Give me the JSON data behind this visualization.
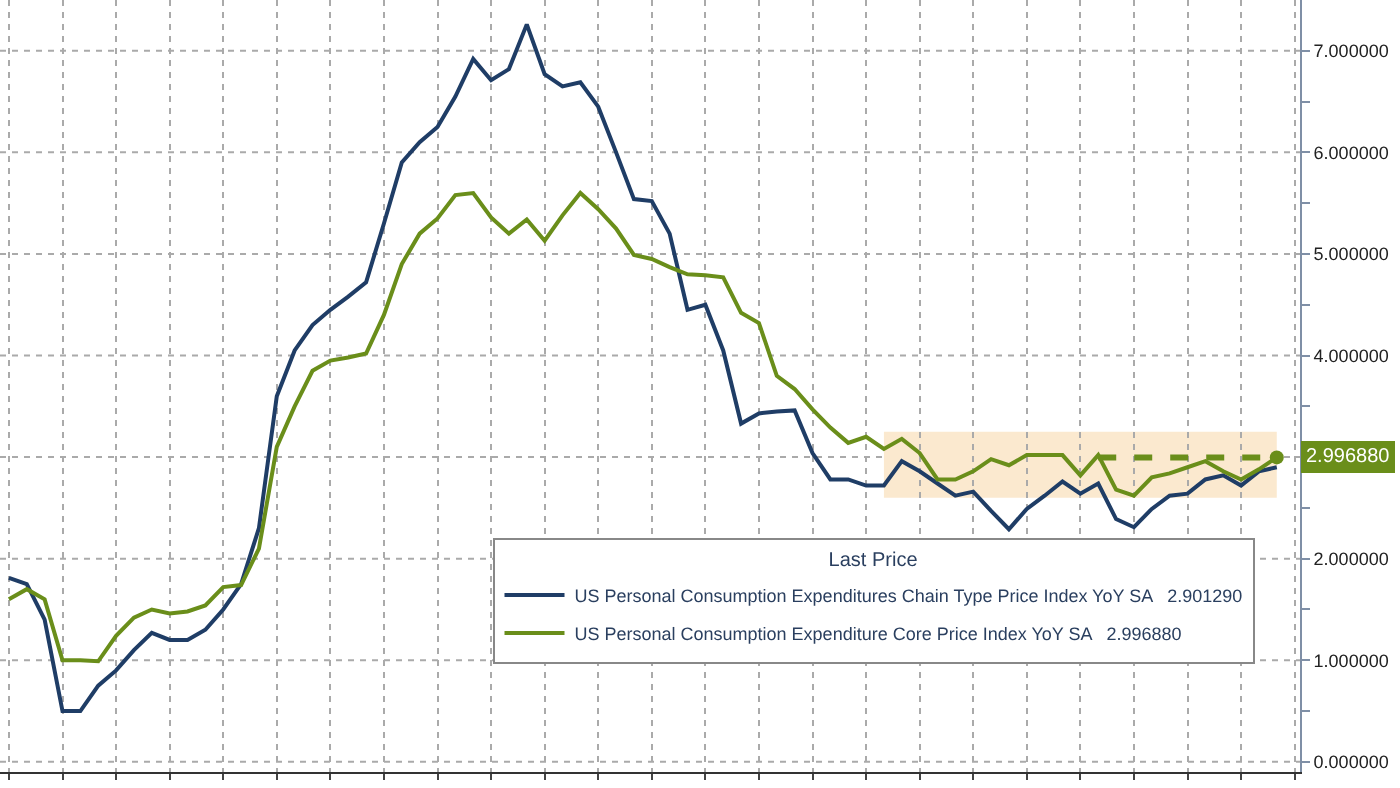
{
  "chart_data": {
    "type": "line",
    "categories": [
      null,
      null,
      null,
      null,
      null,
      null,
      null,
      null,
      null,
      null,
      null,
      null,
      null,
      null,
      null,
      null,
      null,
      null,
      null,
      null,
      null,
      null,
      null,
      null,
      null,
      null,
      null,
      null,
      null,
      null,
      null,
      null,
      null,
      null,
      null,
      null,
      null,
      null,
      null,
      null,
      null,
      null,
      null,
      null,
      null,
      null,
      null,
      null,
      null,
      null,
      null,
      null,
      null,
      null,
      null,
      null,
      null,
      null,
      null,
      null,
      null,
      null,
      null,
      null,
      null,
      null,
      null,
      null,
      null,
      null,
      null,
      null
    ],
    "series": [
      {
        "name": "US Personal Consumption Expenditures Chain Type Price Index YoY SA   2.901290",
        "color": "#1f3d66",
        "values": [
          1.81,
          1.75,
          1.4,
          0.5,
          0.5,
          0.75,
          0.9,
          1.1,
          1.27,
          1.2,
          1.2,
          1.3,
          1.5,
          1.75,
          2.3,
          3.6,
          4.05,
          4.3,
          4.45,
          4.58,
          4.72,
          5.3,
          5.9,
          6.1,
          6.25,
          6.55,
          6.92,
          6.71,
          6.82,
          7.26,
          6.77,
          6.65,
          6.69,
          6.45,
          6.0,
          5.54,
          5.52,
          5.2,
          4.45,
          4.5,
          4.05,
          3.33,
          3.43,
          3.45,
          3.46,
          3.04,
          2.78,
          2.78,
          2.72,
          2.72,
          2.96,
          2.86,
          2.74,
          2.62,
          2.66,
          2.47,
          2.29,
          2.49,
          2.62,
          2.76,
          2.64,
          2.74,
          2.39,
          2.31,
          2.49,
          2.62,
          2.64,
          2.78,
          2.82,
          2.72,
          2.86,
          2.9
        ]
      },
      {
        "name": "US Personal Consumption Expenditure Core Price Index YoY SA   2.996880",
        "color": "#6a8e1a",
        "values": [
          1.6,
          1.7,
          1.6,
          1.0,
          1.0,
          0.99,
          1.24,
          1.42,
          1.5,
          1.46,
          1.48,
          1.54,
          1.72,
          1.74,
          2.1,
          3.1,
          3.5,
          3.85,
          3.95,
          3.98,
          4.02,
          4.4,
          4.9,
          5.2,
          5.35,
          5.58,
          5.6,
          5.36,
          5.2,
          5.34,
          5.13,
          5.38,
          5.6,
          5.44,
          5.25,
          4.99,
          4.95,
          4.87,
          4.8,
          4.79,
          4.77,
          4.42,
          4.32,
          3.8,
          3.67,
          3.47,
          3.29,
          3.14,
          3.2,
          3.08,
          3.18,
          3.04,
          2.78,
          2.78,
          2.86,
          2.98,
          2.92,
          3.02,
          3.02,
          3.02,
          2.82,
          3.02,
          2.68,
          2.62,
          2.8,
          2.84,
          2.9,
          2.96,
          2.86,
          2.78,
          2.88,
          2.99688
        ],
        "value_labels": [
          null,
          null,
          null,
          null,
          null,
          null,
          null,
          null,
          null,
          null,
          null,
          null,
          null,
          null,
          null,
          null,
          null,
          null,
          null,
          null,
          null,
          null,
          null,
          null,
          null,
          null,
          null,
          null,
          null,
          null,
          null,
          null,
          null,
          null,
          null,
          null,
          null,
          null,
          null,
          null,
          null,
          null,
          null,
          null,
          null,
          null,
          null,
          null,
          null,
          null,
          null,
          null,
          null,
          null,
          null,
          null,
          null,
          null,
          null,
          null,
          null,
          null,
          null,
          null,
          null,
          null,
          null,
          null,
          null,
          null,
          null,
          "2.996880"
        ]
      }
    ],
    "legend_title": "Last Price",
    "ylim": [
      -0.1,
      7.5
    ],
    "yticks": [
      {
        "value": 0,
        "label": "0.000000"
      },
      {
        "value": 0.5,
        "label": null
      },
      {
        "value": 1,
        "label": "1.000000"
      },
      {
        "value": 1.5,
        "label": null
      },
      {
        "value": 2,
        "label": "2.000000"
      },
      {
        "value": 2.5,
        "label": null
      },
      {
        "value": 3,
        "label": null
      },
      {
        "value": 3.5,
        "label": null
      },
      {
        "value": 4,
        "label": "4.000000"
      },
      {
        "value": 4.5,
        "label": null
      },
      {
        "value": 5,
        "label": "5.000000"
      },
      {
        "value": 5.5,
        "label": null
      },
      {
        "value": 6,
        "label": "6.000000"
      },
      {
        "value": 6.5,
        "label": null
      },
      {
        "value": 7,
        "label": "7.000000"
      }
    ],
    "bands": [
      {
        "axis": "y",
        "from": 2.6,
        "to": 3.25,
        "color": "#fbe9cf"
      }
    ],
    "ref_lines": [
      {
        "axis": "y",
        "value": 2.99688,
        "color": "#6a8e1a",
        "line_style": "dashed"
      }
    ],
    "grid": true,
    "legend": "bottom right",
    "marker": "none",
    "line_style": "solid",
    "tick_labels": "y"
  }
}
